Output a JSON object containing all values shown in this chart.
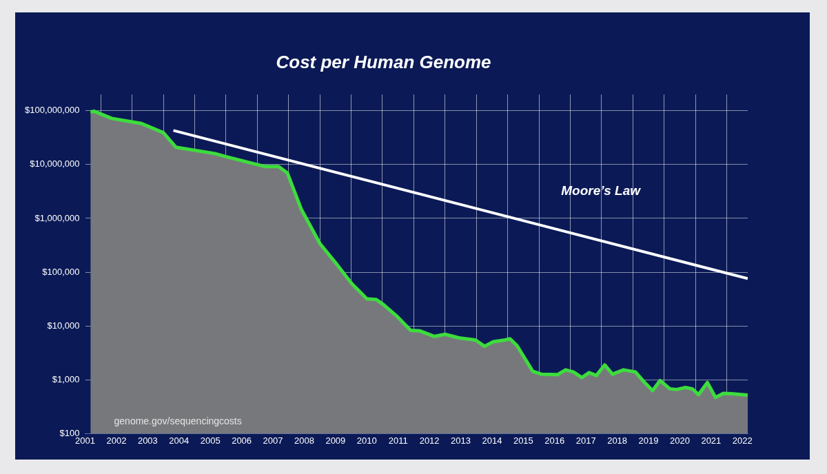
{
  "chart_data": {
    "type": "area",
    "title": "Cost per Human Genome",
    "xlim": [
      2001.5,
      2022.67
    ],
    "xticks": [
      {
        "value": 2001.5,
        "label": "2001"
      },
      {
        "value": 2002,
        "label": null
      },
      {
        "value": 2002.5,
        "label": "2002"
      },
      {
        "value": 2003,
        "label": null
      },
      {
        "value": 2003.5,
        "label": "2003"
      },
      {
        "value": 2004,
        "label": null
      },
      {
        "value": 2004.5,
        "label": "2004"
      },
      {
        "value": 2005,
        "label": null
      },
      {
        "value": 2005.5,
        "label": "2005"
      },
      {
        "value": 2006,
        "label": null
      },
      {
        "value": 2006.5,
        "label": "2006"
      },
      {
        "value": 2007,
        "label": null
      },
      {
        "value": 2007.5,
        "label": "2007"
      },
      {
        "value": 2008,
        "label": null
      },
      {
        "value": 2008.5,
        "label": "2008"
      },
      {
        "value": 2009,
        "label": null
      },
      {
        "value": 2009.5,
        "label": "2009"
      },
      {
        "value": 2010,
        "label": null
      },
      {
        "value": 2010.5,
        "label": "2010"
      },
      {
        "value": 2011,
        "label": null
      },
      {
        "value": 2011.5,
        "label": "2011"
      },
      {
        "value": 2012,
        "label": null
      },
      {
        "value": 2012.5,
        "label": "2012"
      },
      {
        "value": 2013,
        "label": null
      },
      {
        "value": 2013.5,
        "label": "2013"
      },
      {
        "value": 2014,
        "label": null
      },
      {
        "value": 2014.5,
        "label": "2014"
      },
      {
        "value": 2015,
        "label": null
      },
      {
        "value": 2015.5,
        "label": "2015"
      },
      {
        "value": 2016,
        "label": null
      },
      {
        "value": 2016.5,
        "label": "2016"
      },
      {
        "value": 2017,
        "label": null
      },
      {
        "value": 2017.5,
        "label": "2017"
      },
      {
        "value": 2018,
        "label": null
      },
      {
        "value": 2018.5,
        "label": "2018"
      },
      {
        "value": 2019,
        "label": null
      },
      {
        "value": 2019.5,
        "label": "2019"
      },
      {
        "value": 2020,
        "label": null
      },
      {
        "value": 2020.5,
        "label": "2020"
      },
      {
        "value": 2021,
        "label": null
      },
      {
        "value": 2021.5,
        "label": "2021"
      },
      {
        "value": 2022,
        "label": null
      },
      {
        "value": 2022.5,
        "label": "2022"
      }
    ],
    "ylim": [
      100,
      200000000
    ],
    "yticks": [
      {
        "value": 100,
        "label": "$100"
      },
      {
        "value": 1000,
        "label": "$1,000"
      },
      {
        "value": 10000,
        "label": "$10,000"
      },
      {
        "value": 100000,
        "label": "$100,000"
      },
      {
        "value": 1000000,
        "label": "$1,000,000"
      },
      {
        "value": 10000000,
        "label": "$10,000,000"
      },
      {
        "value": 100000000,
        "label": "$100,000,000"
      }
    ],
    "log": "y",
    "grid": true,
    "legend": false,
    "series": [
      {
        "color": "#3ddc3d",
        "x": [
          2001.67,
          2001.78,
          2002.35,
          2003.3,
          2004.0,
          2004.4,
          2005.64,
          2006.0,
          2007.0,
          2007.24,
          2007.68,
          2007.96,
          2008.4,
          2009.0,
          2009.5,
          2010.02,
          2010.5,
          2010.8,
          2011.03,
          2011.47,
          2011.9,
          2012.2,
          2012.66,
          2013.0,
          2013.45,
          2013.97,
          2014.26,
          2014.54,
          2014.92,
          2015.07,
          2015.3,
          2015.8,
          2016.08,
          2016.6,
          2016.85,
          2017.1,
          2017.37,
          2017.6,
          2017.83,
          2018.1,
          2018.35,
          2018.7,
          2019.08,
          2019.36,
          2019.63,
          2019.87,
          2020.18,
          2020.4,
          2020.68,
          2020.9,
          2021.1,
          2021.38,
          2021.64,
          2021.89,
          2022.15,
          2022.67
        ],
        "values": [
          95000000,
          98000000,
          72000000,
          58000000,
          39000000,
          21000000,
          16000000,
          14000000,
          10000000,
          9200000,
          9200000,
          7000000,
          1500000,
          340000,
          150000,
          61000,
          32000,
          31000,
          25000,
          15000,
          8300,
          8100,
          6400,
          7000,
          6000,
          5500,
          4200,
          5100,
          5500,
          5800,
          4300,
          1440,
          1270,
          1250,
          1530,
          1400,
          1100,
          1360,
          1200,
          1890,
          1270,
          1530,
          1400,
          910,
          630,
          970,
          680,
          660,
          720,
          680,
          530,
          890,
          470,
          560,
          550,
          520
        ]
      },
      {
        "type": "line",
        "name": "Moore’s Law",
        "color": "#ffffff",
        "x": [
          2004.32,
          2022.67
        ],
        "values": [
          43000000,
          76000
        ]
      }
    ],
    "annotations": [
      "genome.gov/sequencingcosts"
    ]
  }
}
